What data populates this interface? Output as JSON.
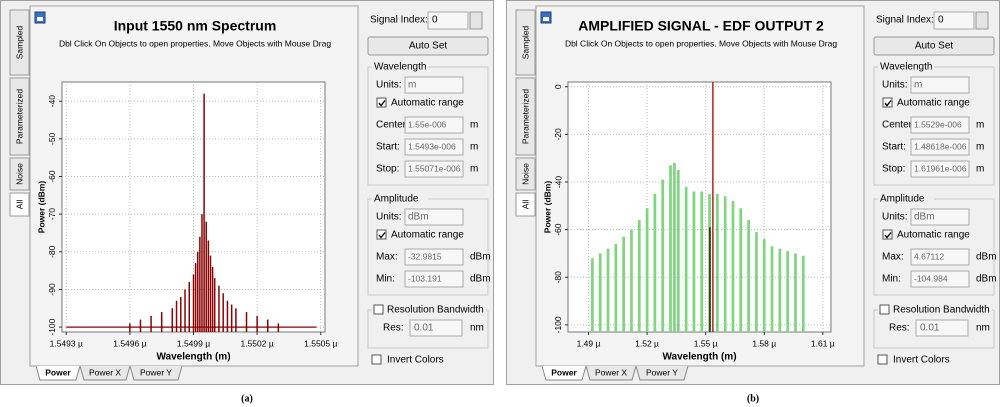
{
  "panels": [
    {
      "caption": "(a)",
      "side_tabs": [
        "Sampled",
        "Parameterized",
        "Noise",
        "All"
      ],
      "hint": "Dbl Click On Objects to open properties.  Move Objects with Mouse Drag",
      "bottom_tabs": [
        "Power",
        "Power X",
        "Power Y"
      ],
      "chart": {
        "type": "bar",
        "title": "Input 1550 nm Spectrum",
        "x_label": "Wavelength (m)",
        "y_label": "Power (dBm)",
        "xlim": [
          1.54928,
          1.55052
        ],
        "ylim": [
          -101.3,
          -34.9
        ],
        "grid": true,
        "xticks": [
          {
            "value": 1.5493,
            "label": "1.5493 µ"
          },
          {
            "value": 1.5496,
            "label": "1.5496 µ"
          },
          {
            "value": 1.5499,
            "label": "1.5499 µ"
          },
          {
            "value": 1.5502,
            "label": "1.5502 µ"
          },
          {
            "value": 1.5505,
            "label": "1.5505 µ"
          }
        ],
        "yticks": [
          -40,
          -50,
          -60,
          -70,
          -80,
          -90,
          -100
        ],
        "series": [
          {
            "type": "line",
            "color": "#8b0000",
            "x": [
              1.5493,
              1.55048
            ],
            "values": [
              -100,
              -100
            ]
          },
          {
            "type": "bar",
            "color": "#8b0000",
            "x": [
              1.5496,
              1.54965,
              1.5497,
              1.54975,
              1.5498,
              1.54982,
              1.54984,
              1.54986,
              1.54988,
              1.5499,
              1.54991,
              1.54992,
              1.54993,
              1.54994,
              1.54995,
              1.54996,
              1.54997,
              1.54998,
              1.54999,
              1.55,
              1.55002,
              1.55004,
              1.55006,
              1.55008,
              1.5501,
              1.55015,
              1.5502,
              1.55025,
              1.5503
            ],
            "values": [
              -99,
              -98,
              -97,
              -96,
              -95,
              -93,
              -92,
              -90,
              -88,
              -86,
              -83,
              -80,
              -76,
              -70,
              -38,
              -72,
              -77,
              -81,
              -84,
              -87,
              -89,
              -91,
              -93,
              -94,
              -95,
              -96,
              -97,
              -98,
              -99
            ]
          }
        ]
      },
      "settings": {
        "signal_index_label": "Signal Index:",
        "signal_index": 0,
        "auto_set": "Auto Set",
        "wavelength": {
          "title": "Wavelength",
          "units_label": "Units:",
          "units": "m",
          "auto_label": "Automatic range",
          "auto": true,
          "fields": [
            {
              "label": "Center:",
              "value": "1.55e-006",
              "unit": "m"
            },
            {
              "label": "Start:",
              "value": "1.5493e-006",
              "unit": "m"
            },
            {
              "label": "Stop:",
              "value": "1.55071e-006",
              "unit": "m"
            }
          ]
        },
        "amplitude": {
          "title": "Amplitude",
          "units_label": "Units:",
          "units": "dBm",
          "auto_label": "Automatic range",
          "auto": true,
          "fields": [
            {
              "label": "Max:",
              "value": -32.9815,
              "unit": "dBm"
            },
            {
              "label": "Min:",
              "value": -103.191,
              "unit": "dBm"
            }
          ]
        },
        "resolution": {
          "title": "Resolution Bandwidth",
          "checked": false,
          "label": "Res:",
          "value": 0.01,
          "unit": "nm"
        },
        "invert_label": "Invert Colors",
        "invert": false
      }
    },
    {
      "caption": "(b)",
      "side_tabs": [
        "Sampled",
        "Parameterized",
        "Noise",
        "All"
      ],
      "hint": "Dbl Click On Objects to open properties.  Move Objects with Mouse Drag",
      "bottom_tabs": [
        "Power",
        "Power X",
        "Power Y"
      ],
      "chart": {
        "type": "bar",
        "title": "AMPLIFIED SIGNAL - EDF OUTPUT 2",
        "x_label": "Wavelength (m)",
        "y_label": "Power (dBm)",
        "xlim": [
          1.4795,
          1.6142
        ],
        "ylim": [
          -103,
          2
        ],
        "grid": true,
        "xticks": [
          {
            "value": 1.49,
            "label": "1.49 µ"
          },
          {
            "value": 1.52,
            "label": "1.52 µ"
          },
          {
            "value": 1.55,
            "label": "1.55 µ"
          },
          {
            "value": 1.58,
            "label": "1.58 µ"
          },
          {
            "value": 1.61,
            "label": "1.61 µ"
          }
        ],
        "yticks": [
          0,
          -20,
          -40,
          -60,
          -80,
          -100
        ],
        "series": [
          {
            "type": "bar",
            "color": "#7fd67f",
            "x": [
              1.492,
              1.496,
              1.5,
              1.504,
              1.508,
              1.512,
              1.516,
              1.52,
              1.524,
              1.528,
              1.532,
              1.534,
              1.536,
              1.54,
              1.544,
              1.548,
              1.552,
              1.556,
              1.56,
              1.564,
              1.568,
              1.572,
              1.576,
              1.58,
              1.584,
              1.588,
              1.592,
              1.596,
              1.6
            ],
            "values": [
              -72,
              -70,
              -68,
              -66,
              -63,
              -60,
              -56,
              -51,
              -45,
              -39,
              -33,
              -32,
              -35,
              -42,
              -44,
              -44,
              -45,
              -45,
              -46,
              -48,
              -51,
              -56,
              -61,
              -64,
              -67,
              -68,
              -69,
              -70,
              -71
            ]
          },
          {
            "type": "bar",
            "color": "#3b1a00",
            "x": [
              1.5522
            ],
            "values": [
              -59
            ]
          },
          {
            "type": "bar",
            "color": "#b22222",
            "x": [
              1.5537
            ],
            "values": [
              2
            ]
          }
        ]
      },
      "settings": {
        "signal_index_label": "Signal Index:",
        "signal_index": 0,
        "auto_set": "Auto Set",
        "wavelength": {
          "title": "Wavelength",
          "units_label": "Units:",
          "units": "m",
          "auto_label": "Automatic range",
          "auto": true,
          "fields": [
            {
              "label": "Center:",
              "value": "1.5529e-006",
              "unit": "m"
            },
            {
              "label": "Start:",
              "value": "1.48618e-006",
              "unit": "m"
            },
            {
              "label": "Stop:",
              "value": "1.61961e-006",
              "unit": "m"
            }
          ]
        },
        "amplitude": {
          "title": "Amplitude",
          "units_label": "Units:",
          "units": "dBm",
          "auto_label": "Automatic range",
          "auto": true,
          "fields": [
            {
              "label": "Max:",
              "value": 4.67112,
              "unit": "dBm"
            },
            {
              "label": "Min:",
              "value": -104.984,
              "unit": "dBm"
            }
          ]
        },
        "resolution": {
          "title": "Resolution Bandwidth",
          "checked": false,
          "label": "Res:",
          "value": 0.01,
          "unit": "nm"
        },
        "invert_label": "Invert Colors",
        "invert": false
      }
    }
  ]
}
